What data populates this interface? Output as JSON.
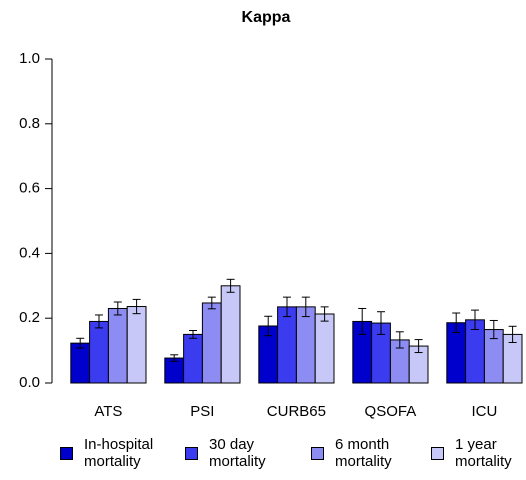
{
  "chart_data": {
    "type": "bar",
    "title": "Kappa",
    "categories": [
      "ATS",
      "PSI",
      "CURB65",
      "QSOFA",
      "ICU"
    ],
    "series": [
      {
        "name": "In-hospital mortality",
        "color": "#0000cd",
        "values": [
          0.123,
          0.077,
          0.176,
          0.19,
          0.186
        ],
        "errors": [
          0.015,
          0.01,
          0.03,
          0.04,
          0.03
        ]
      },
      {
        "name": "30 day mortality",
        "color": "#3b3bf0",
        "values": [
          0.19,
          0.15,
          0.235,
          0.185,
          0.195
        ],
        "errors": [
          0.02,
          0.012,
          0.03,
          0.035,
          0.03
        ]
      },
      {
        "name": "6 month mortality",
        "color": "#8c8cf3",
        "values": [
          0.23,
          0.247,
          0.235,
          0.133,
          0.165
        ],
        "errors": [
          0.02,
          0.018,
          0.03,
          0.025,
          0.028
        ]
      },
      {
        "name": "1 year mortality",
        "color": "#c8c8f8",
        "values": [
          0.236,
          0.3,
          0.213,
          0.114,
          0.15
        ],
        "errors": [
          0.022,
          0.02,
          0.022,
          0.02,
          0.025
        ]
      }
    ],
    "ylim": [
      0,
      1
    ],
    "yticks": [
      {
        "value": 0,
        "label": "0.0"
      },
      0.2,
      0.4,
      0.6,
      0.8,
      {
        "value": 1,
        "label": "1.0"
      }
    ]
  }
}
